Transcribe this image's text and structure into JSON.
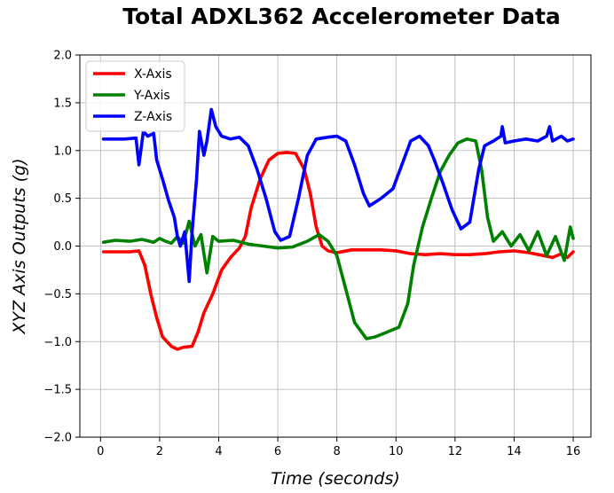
{
  "chart_data": {
    "type": "line",
    "title": "Total ADXL362 Accelerometer Data",
    "xlabel": "Time (seconds)",
    "ylabel": "XYZ Axis Outputs (g)",
    "xlim": [
      -0.7,
      16.6
    ],
    "ylim": [
      -2.0,
      2.0
    ],
    "xticks": [
      0,
      2,
      4,
      6,
      8,
      10,
      12,
      14,
      16
    ],
    "yticks": [
      "-2.0",
      "-1.5",
      "-1.0",
      "-0.5",
      "0.0",
      "0.5",
      "1.0",
      "1.5",
      "2.0"
    ],
    "grid": true,
    "legend_position": "top-left",
    "series": [
      {
        "name": "X-Axis",
        "color": "#ff0000",
        "points": [
          [
            0.1,
            -0.06
          ],
          [
            1.0,
            -0.06
          ],
          [
            1.3,
            -0.05
          ],
          [
            1.5,
            -0.2
          ],
          [
            1.7,
            -0.5
          ],
          [
            1.9,
            -0.75
          ],
          [
            2.1,
            -0.95
          ],
          [
            2.4,
            -1.05
          ],
          [
            2.6,
            -1.08
          ],
          [
            2.8,
            -1.06
          ],
          [
            3.1,
            -1.05
          ],
          [
            3.3,
            -0.9
          ],
          [
            3.5,
            -0.7
          ],
          [
            3.8,
            -0.5
          ],
          [
            4.1,
            -0.25
          ],
          [
            4.4,
            -0.12
          ],
          [
            4.7,
            -0.02
          ],
          [
            4.9,
            0.1
          ],
          [
            5.1,
            0.4
          ],
          [
            5.4,
            0.7
          ],
          [
            5.7,
            0.9
          ],
          [
            6.0,
            0.97
          ],
          [
            6.3,
            0.98
          ],
          [
            6.6,
            0.97
          ],
          [
            6.9,
            0.8
          ],
          [
            7.1,
            0.55
          ],
          [
            7.3,
            0.2
          ],
          [
            7.5,
            0.0
          ],
          [
            7.7,
            -0.05
          ],
          [
            8.0,
            -0.07
          ],
          [
            8.5,
            -0.04
          ],
          [
            9.0,
            -0.04
          ],
          [
            9.5,
            -0.04
          ],
          [
            10.0,
            -0.05
          ],
          [
            10.5,
            -0.08
          ],
          [
            11.0,
            -0.09
          ],
          [
            11.5,
            -0.08
          ],
          [
            12.0,
            -0.09
          ],
          [
            12.5,
            -0.09
          ],
          [
            13.0,
            -0.08
          ],
          [
            13.5,
            -0.06
          ],
          [
            14.0,
            -0.05
          ],
          [
            14.5,
            -0.07
          ],
          [
            15.0,
            -0.1
          ],
          [
            15.3,
            -0.12
          ],
          [
            15.6,
            -0.08
          ],
          [
            15.8,
            -0.12
          ],
          [
            16.0,
            -0.06
          ]
        ]
      },
      {
        "name": "Y-Axis",
        "color": "#008000",
        "points": [
          [
            0.1,
            0.04
          ],
          [
            0.5,
            0.06
          ],
          [
            1.0,
            0.05
          ],
          [
            1.4,
            0.07
          ],
          [
            1.8,
            0.04
          ],
          [
            2.0,
            0.08
          ],
          [
            2.2,
            0.05
          ],
          [
            2.4,
            0.03
          ],
          [
            2.6,
            0.1
          ],
          [
            2.8,
            0.03
          ],
          [
            3.0,
            0.26
          ],
          [
            3.2,
            0.0
          ],
          [
            3.4,
            0.12
          ],
          [
            3.6,
            -0.28
          ],
          [
            3.8,
            0.1
          ],
          [
            4.0,
            0.05
          ],
          [
            4.5,
            0.06
          ],
          [
            5.0,
            0.02
          ],
          [
            5.5,
            0.0
          ],
          [
            6.0,
            -0.02
          ],
          [
            6.5,
            -0.01
          ],
          [
            7.0,
            0.05
          ],
          [
            7.4,
            0.12
          ],
          [
            7.7,
            0.05
          ],
          [
            8.0,
            -0.1
          ],
          [
            8.3,
            -0.45
          ],
          [
            8.6,
            -0.8
          ],
          [
            9.0,
            -0.97
          ],
          [
            9.3,
            -0.95
          ],
          [
            9.7,
            -0.9
          ],
          [
            10.1,
            -0.85
          ],
          [
            10.4,
            -0.6
          ],
          [
            10.6,
            -0.2
          ],
          [
            10.9,
            0.2
          ],
          [
            11.2,
            0.5
          ],
          [
            11.5,
            0.78
          ],
          [
            11.8,
            0.95
          ],
          [
            12.1,
            1.08
          ],
          [
            12.4,
            1.12
          ],
          [
            12.7,
            1.1
          ],
          [
            12.9,
            0.8
          ],
          [
            13.1,
            0.3
          ],
          [
            13.3,
            0.05
          ],
          [
            13.6,
            0.15
          ],
          [
            13.9,
            0.0
          ],
          [
            14.2,
            0.12
          ],
          [
            14.5,
            -0.05
          ],
          [
            14.8,
            0.15
          ],
          [
            15.1,
            -0.1
          ],
          [
            15.4,
            0.1
          ],
          [
            15.7,
            -0.15
          ],
          [
            15.9,
            0.2
          ],
          [
            16.0,
            0.08
          ]
        ]
      },
      {
        "name": "Z-Axis",
        "color": "#0000ff",
        "points": [
          [
            0.1,
            1.12
          ],
          [
            0.8,
            1.12
          ],
          [
            1.2,
            1.13
          ],
          [
            1.3,
            0.85
          ],
          [
            1.45,
            1.2
          ],
          [
            1.6,
            1.15
          ],
          [
            1.8,
            1.18
          ],
          [
            1.9,
            0.9
          ],
          [
            2.1,
            0.7
          ],
          [
            2.3,
            0.48
          ],
          [
            2.5,
            0.3
          ],
          [
            2.6,
            0.1
          ],
          [
            2.7,
            0.0
          ],
          [
            2.85,
            0.15
          ],
          [
            3.0,
            -0.37
          ],
          [
            3.1,
            0.15
          ],
          [
            3.25,
            0.7
          ],
          [
            3.35,
            1.2
          ],
          [
            3.5,
            0.95
          ],
          [
            3.6,
            1.1
          ],
          [
            3.75,
            1.43
          ],
          [
            3.9,
            1.25
          ],
          [
            4.1,
            1.15
          ],
          [
            4.4,
            1.12
          ],
          [
            4.7,
            1.14
          ],
          [
            5.0,
            1.05
          ],
          [
            5.3,
            0.8
          ],
          [
            5.6,
            0.5
          ],
          [
            5.9,
            0.15
          ],
          [
            6.1,
            0.06
          ],
          [
            6.4,
            0.1
          ],
          [
            6.7,
            0.5
          ],
          [
            7.0,
            0.95
          ],
          [
            7.3,
            1.12
          ],
          [
            7.7,
            1.14
          ],
          [
            8.0,
            1.15
          ],
          [
            8.3,
            1.1
          ],
          [
            8.6,
            0.85
          ],
          [
            8.9,
            0.55
          ],
          [
            9.1,
            0.42
          ],
          [
            9.5,
            0.5
          ],
          [
            9.9,
            0.6
          ],
          [
            10.2,
            0.85
          ],
          [
            10.5,
            1.1
          ],
          [
            10.8,
            1.15
          ],
          [
            11.1,
            1.05
          ],
          [
            11.3,
            0.9
          ],
          [
            11.6,
            0.65
          ],
          [
            11.9,
            0.38
          ],
          [
            12.2,
            0.18
          ],
          [
            12.5,
            0.25
          ],
          [
            12.8,
            0.8
          ],
          [
            13.0,
            1.05
          ],
          [
            13.3,
            1.1
          ],
          [
            13.55,
            1.15
          ],
          [
            13.6,
            1.25
          ],
          [
            13.7,
            1.08
          ],
          [
            14.0,
            1.1
          ],
          [
            14.4,
            1.12
          ],
          [
            14.8,
            1.1
          ],
          [
            15.1,
            1.15
          ],
          [
            15.2,
            1.25
          ],
          [
            15.3,
            1.1
          ],
          [
            15.6,
            1.15
          ],
          [
            15.8,
            1.1
          ],
          [
            16.0,
            1.12
          ]
        ]
      }
    ]
  }
}
